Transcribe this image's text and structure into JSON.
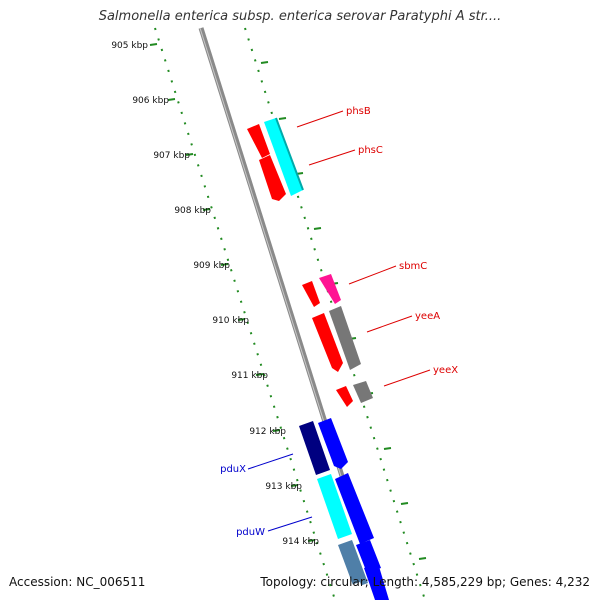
{
  "title": "Salmonella enterica subsp. enterica serovar Paratyphi A str....",
  "accession_text": "Accession: NC_006511",
  "summary_text": "Topology: circular; Length: 4,585,229 bp; Genes: 4,232",
  "topology": "circular",
  "length_bp": 4585229,
  "gene_count": 4232,
  "colors": {
    "ruler": "#228b22",
    "backbone": "#8a8a8a",
    "red": "#ff0000",
    "cyan": "#00ffff",
    "magenta": "#ff1493",
    "grey": "#777777",
    "navy": "#000080",
    "blue": "#0000ff",
    "steel": "#4f7fa8",
    "label_red": "#dd0000",
    "label_blue": "#0000cc"
  },
  "ticks": [
    "905 kbp",
    "906 kbp",
    "907 kbp",
    "908 kbp",
    "909 kbp",
    "910 kbp",
    "911 kbp",
    "912 kbp",
    "913 kbp",
    "914 kbp"
  ],
  "genes": [
    {
      "label": "phsB",
      "side": "right"
    },
    {
      "label": "phsC",
      "side": "right"
    },
    {
      "label": "sbmC",
      "side": "right"
    },
    {
      "label": "yeeA",
      "side": "right"
    },
    {
      "label": "yeeX",
      "side": "right"
    },
    {
      "label": "pduX",
      "side": "left"
    },
    {
      "label": "pduW",
      "side": "left"
    }
  ]
}
